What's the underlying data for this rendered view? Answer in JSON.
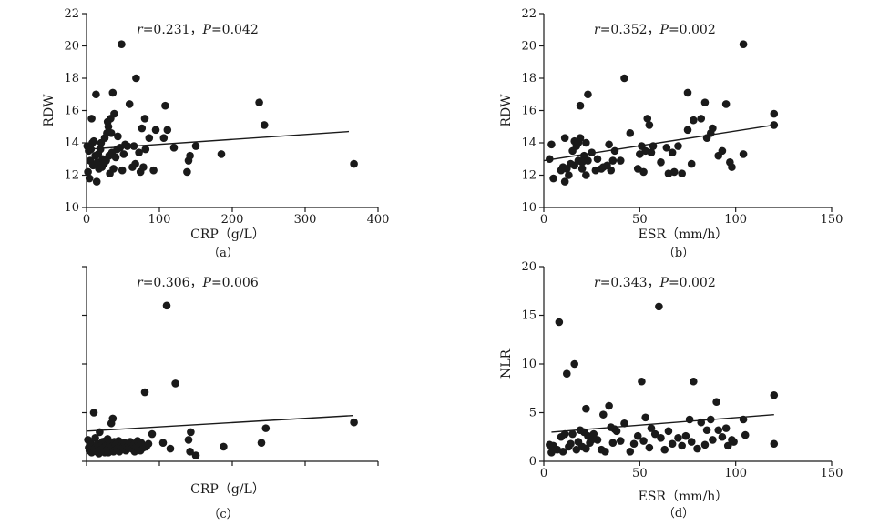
{
  "chart_data": [
    {
      "id": "a",
      "type": "scatter",
      "caption": "（a）",
      "xlabel": "CRP（g/L）",
      "ylabel": "RDW",
      "annotation": {
        "r_symbol": "r",
        "r_value": "=0.231，",
        "p_symbol": "P",
        "p_value": "=0.042"
      },
      "xlim": [
        0,
        400
      ],
      "ylim": [
        10,
        22
      ],
      "xticks": [
        0,
        100,
        200,
        300,
        400
      ],
      "yticks": [
        10,
        12,
        14,
        16,
        18,
        20,
        22
      ],
      "show_yticks": true,
      "show_xtick_labels": true,
      "show_ytick_labels": true,
      "trendline": [
        [
          0,
          13.6
        ],
        [
          360,
          14.7
        ]
      ],
      "points": [
        [
          1,
          13.8
        ],
        [
          2,
          12.2
        ],
        [
          3,
          13.5
        ],
        [
          4,
          11.8
        ],
        [
          5,
          12.9
        ],
        [
          6,
          13.6
        ],
        [
          7,
          15.5
        ],
        [
          8,
          14.0
        ],
        [
          9,
          12.6
        ],
        [
          10,
          14.1
        ],
        [
          12,
          13.2
        ],
        [
          13,
          17.0
        ],
        [
          14,
          11.6
        ],
        [
          15,
          12.8
        ],
        [
          16,
          13.3
        ],
        [
          17,
          12.4
        ],
        [
          19,
          13.6
        ],
        [
          20,
          14.0
        ],
        [
          21,
          12.5
        ],
        [
          22,
          13.0
        ],
        [
          24,
          12.7
        ],
        [
          25,
          14.3
        ],
        [
          27,
          12.9
        ],
        [
          28,
          14.6
        ],
        [
          29,
          15.3
        ],
        [
          30,
          15.0
        ],
        [
          31,
          13.2
        ],
        [
          32,
          12.1
        ],
        [
          33,
          15.5
        ],
        [
          34,
          14.6
        ],
        [
          35,
          13.4
        ],
        [
          36,
          17.1
        ],
        [
          37,
          12.4
        ],
        [
          38,
          15.8
        ],
        [
          40,
          13.1
        ],
        [
          42,
          13.6
        ],
        [
          43,
          14.4
        ],
        [
          46,
          13.7
        ],
        [
          48,
          20.1
        ],
        [
          49,
          12.3
        ],
        [
          51,
          13.3
        ],
        [
          53,
          13.9
        ],
        [
          56,
          13.8
        ],
        [
          59,
          16.4
        ],
        [
          63,
          12.5
        ],
        [
          65,
          13.8
        ],
        [
          67,
          12.7
        ],
        [
          68,
          18.0
        ],
        [
          72,
          13.4
        ],
        [
          74,
          12.2
        ],
        [
          76,
          14.9
        ],
        [
          78,
          12.5
        ],
        [
          80,
          15.5
        ],
        [
          81,
          13.6
        ],
        [
          86,
          14.3
        ],
        [
          92,
          12.3
        ],
        [
          95,
          14.8
        ],
        [
          106,
          14.3
        ],
        [
          108,
          16.3
        ],
        [
          111,
          14.8
        ],
        [
          120,
          13.7
        ],
        [
          138,
          12.2
        ],
        [
          140,
          12.9
        ],
        [
          142,
          13.2
        ],
        [
          150,
          13.8
        ],
        [
          185,
          13.3
        ],
        [
          237,
          16.5
        ],
        [
          244,
          15.1
        ],
        [
          367,
          12.7
        ]
      ]
    },
    {
      "id": "b",
      "type": "scatter",
      "caption": "（b）",
      "xlabel": "ESR（mm/h）",
      "ylabel": "RDW",
      "annotation": {
        "r_symbol": "r",
        "r_value": "=0.352，",
        "p_symbol": "P",
        "p_value": "=0.002"
      },
      "xlim": [
        0,
        150
      ],
      "ylim": [
        10,
        22
      ],
      "xticks": [
        0,
        50,
        100,
        150
      ],
      "yticks": [
        10,
        12,
        14,
        16,
        18,
        20,
        22
      ],
      "show_yticks": true,
      "show_xtick_labels": true,
      "show_ytick_labels": true,
      "trendline": [
        [
          0,
          12.9
        ],
        [
          120,
          15.1
        ]
      ],
      "points": [
        [
          3,
          13.0
        ],
        [
          4,
          13.9
        ],
        [
          5,
          11.8
        ],
        [
          9,
          12.3
        ],
        [
          10,
          12.5
        ],
        [
          11,
          14.3
        ],
        [
          11,
          11.6
        ],
        [
          12,
          12.4
        ],
        [
          13,
          12.0
        ],
        [
          14,
          12.7
        ],
        [
          15,
          13.5
        ],
        [
          16,
          12.6
        ],
        [
          16,
          14.1
        ],
        [
          17,
          13.8
        ],
        [
          18,
          14.0
        ],
        [
          18,
          12.9
        ],
        [
          19,
          14.3
        ],
        [
          19,
          16.3
        ],
        [
          20,
          12.4
        ],
        [
          20,
          12.8
        ],
        [
          21,
          13.2
        ],
        [
          22,
          14.0
        ],
        [
          22,
          12.0
        ],
        [
          23,
          12.9
        ],
        [
          23,
          17.0
        ],
        [
          25,
          13.4
        ],
        [
          27,
          12.3
        ],
        [
          28,
          13.0
        ],
        [
          30,
          12.4
        ],
        [
          31,
          12.5
        ],
        [
          33,
          12.6
        ],
        [
          34,
          13.9
        ],
        [
          35,
          12.3
        ],
        [
          36,
          12.9
        ],
        [
          37,
          13.5
        ],
        [
          40,
          12.9
        ],
        [
          42,
          18.0
        ],
        [
          45,
          14.6
        ],
        [
          49,
          12.4
        ],
        [
          50,
          13.3
        ],
        [
          51,
          13.8
        ],
        [
          52,
          12.2
        ],
        [
          53,
          13.5
        ],
        [
          54,
          15.5
        ],
        [
          55,
          15.1
        ],
        [
          56,
          13.4
        ],
        [
          57,
          13.8
        ],
        [
          61,
          12.8
        ],
        [
          64,
          13.7
        ],
        [
          65,
          12.1
        ],
        [
          67,
          13.4
        ],
        [
          68,
          12.2
        ],
        [
          70,
          13.8
        ],
        [
          72,
          12.1
        ],
        [
          75,
          14.8
        ],
        [
          75,
          17.1
        ],
        [
          77,
          12.7
        ],
        [
          78,
          15.4
        ],
        [
          82,
          15.5
        ],
        [
          84,
          16.5
        ],
        [
          85,
          14.3
        ],
        [
          87,
          14.6
        ],
        [
          88,
          14.9
        ],
        [
          91,
          13.2
        ],
        [
          93,
          13.5
        ],
        [
          95,
          16.4
        ],
        [
          97,
          12.8
        ],
        [
          98,
          12.5
        ],
        [
          104,
          13.3
        ],
        [
          104,
          20.1
        ],
        [
          120,
          15.8
        ],
        [
          120,
          15.1
        ]
      ]
    },
    {
      "id": "c",
      "type": "scatter",
      "caption": "（c）",
      "xlabel": "CRP（g/L）",
      "ylabel": "",
      "annotation": {
        "r_symbol": "r",
        "r_value": "=0.306，",
        "p_symbol": "P",
        "p_value": "=0.006"
      },
      "xlim": [
        0,
        400
      ],
      "ylim": [
        0,
        20
      ],
      "xticks": [
        0,
        100,
        200,
        300,
        400
      ],
      "yticks": [
        0,
        5,
        10,
        15,
        20
      ],
      "show_yticks": true,
      "show_xtick_labels": false,
      "show_ytick_labels": false,
      "trendline": [
        [
          0,
          3.1
        ],
        [
          365,
          4.7
        ]
      ],
      "points": [
        [
          2,
          2.2
        ],
        [
          3,
          1.4
        ],
        [
          4,
          1.1
        ],
        [
          5,
          2.0
        ],
        [
          6,
          1.7
        ],
        [
          7,
          0.9
        ],
        [
          8,
          1.5
        ],
        [
          10,
          5.0
        ],
        [
          11,
          1.3
        ],
        [
          12,
          2.4
        ],
        [
          14,
          1.0
        ],
        [
          15,
          1.8
        ],
        [
          17,
          0.8
        ],
        [
          18,
          3.0
        ],
        [
          19,
          1.6
        ],
        [
          20,
          1.2
        ],
        [
          22,
          2.0
        ],
        [
          23,
          1.4
        ],
        [
          25,
          0.9
        ],
        [
          26,
          2.1
        ],
        [
          27,
          1.6
        ],
        [
          28,
          1.2
        ],
        [
          29,
          2.3
        ],
        [
          30,
          0.9
        ],
        [
          32,
          1.8
        ],
        [
          34,
          3.9
        ],
        [
          35,
          1.5
        ],
        [
          36,
          4.4
        ],
        [
          37,
          1.0
        ],
        [
          38,
          2.0
        ],
        [
          40,
          1.7
        ],
        [
          42,
          1.3
        ],
        [
          44,
          2.1
        ],
        [
          45,
          1.0
        ],
        [
          47,
          1.6
        ],
        [
          50,
          1.4
        ],
        [
          52,
          1.9
        ],
        [
          54,
          1.1
        ],
        [
          56,
          1.5
        ],
        [
          58,
          1.4
        ],
        [
          60,
          2.0
        ],
        [
          62,
          1.3
        ],
        [
          65,
          1.7
        ],
        [
          66,
          1.0
        ],
        [
          68,
          1.5
        ],
        [
          70,
          2.1
        ],
        [
          72,
          1.6
        ],
        [
          74,
          1.1
        ],
        [
          75,
          1.9
        ],
        [
          78,
          1.4
        ],
        [
          80,
          7.1
        ],
        [
          82,
          1.5
        ],
        [
          85,
          1.8
        ],
        [
          90,
          2.8
        ],
        [
          105,
          1.9
        ],
        [
          110,
          16.0
        ],
        [
          115,
          1.3
        ],
        [
          122,
          8.0
        ],
        [
          140,
          2.2
        ],
        [
          142,
          1.0
        ],
        [
          143,
          3.0
        ],
        [
          150,
          0.6
        ],
        [
          188,
          1.5
        ],
        [
          240,
          1.9
        ],
        [
          246,
          3.4
        ],
        [
          367,
          4.0
        ]
      ]
    },
    {
      "id": "d",
      "type": "scatter",
      "caption": "（d）",
      "xlabel": "ESR（mm/h）",
      "ylabel": "NLR",
      "annotation": {
        "r_symbol": "r",
        "r_value": "=0.343，",
        "p_symbol": "P",
        "p_value": "=0.002"
      },
      "xlim": [
        0,
        150
      ],
      "ylim": [
        0,
        20
      ],
      "xticks": [
        0,
        50,
        100,
        150
      ],
      "yticks": [
        0,
        5,
        10,
        15,
        20
      ],
      "show_yticks": true,
      "show_xtick_labels": true,
      "show_ytick_labels": true,
      "trendline": [
        [
          4,
          3.0
        ],
        [
          120,
          4.8
        ]
      ],
      "points": [
        [
          3,
          1.7
        ],
        [
          4,
          0.9
        ],
        [
          5,
          1.6
        ],
        [
          7,
          1.2
        ],
        [
          8,
          14.3
        ],
        [
          9,
          2.5
        ],
        [
          10,
          1.0
        ],
        [
          11,
          2.8
        ],
        [
          12,
          9.0
        ],
        [
          13,
          1.5
        ],
        [
          14,
          1.8
        ],
        [
          15,
          2.8
        ],
        [
          16,
          10.0
        ],
        [
          17,
          1.2
        ],
        [
          18,
          2.0
        ],
        [
          19,
          3.2
        ],
        [
          20,
          1.5
        ],
        [
          21,
          3.0
        ],
        [
          22,
          1.3
        ],
        [
          22,
          5.4
        ],
        [
          23,
          2.6
        ],
        [
          24,
          1.9
        ],
        [
          25,
          2.2
        ],
        [
          26,
          2.8
        ],
        [
          28,
          2.2
        ],
        [
          30,
          1.2
        ],
        [
          31,
          4.8
        ],
        [
          32,
          1.0
        ],
        [
          34,
          5.7
        ],
        [
          35,
          3.5
        ],
        [
          36,
          1.9
        ],
        [
          37,
          3.3
        ],
        [
          38,
          3.1
        ],
        [
          40,
          2.1
        ],
        [
          42,
          3.9
        ],
        [
          45,
          1.0
        ],
        [
          47,
          1.8
        ],
        [
          49,
          2.6
        ],
        [
          51,
          8.2
        ],
        [
          52,
          2.1
        ],
        [
          53,
          4.5
        ],
        [
          55,
          1.4
        ],
        [
          56,
          3.4
        ],
        [
          58,
          2.8
        ],
        [
          60,
          15.9
        ],
        [
          61,
          2.4
        ],
        [
          63,
          1.2
        ],
        [
          65,
          3.1
        ],
        [
          67,
          1.8
        ],
        [
          70,
          2.4
        ],
        [
          72,
          1.6
        ],
        [
          74,
          2.6
        ],
        [
          76,
          4.3
        ],
        [
          77,
          2.0
        ],
        [
          78,
          8.2
        ],
        [
          80,
          1.3
        ],
        [
          82,
          4.0
        ],
        [
          84,
          1.7
        ],
        [
          85,
          3.2
        ],
        [
          87,
          4.3
        ],
        [
          88,
          2.2
        ],
        [
          90,
          6.1
        ],
        [
          91,
          3.2
        ],
        [
          93,
          2.5
        ],
        [
          95,
          3.4
        ],
        [
          96,
          1.6
        ],
        [
          98,
          2.2
        ],
        [
          99,
          2.0
        ],
        [
          104,
          4.3
        ],
        [
          105,
          2.7
        ],
        [
          120,
          6.8
        ],
        [
          120,
          1.8
        ]
      ]
    }
  ]
}
